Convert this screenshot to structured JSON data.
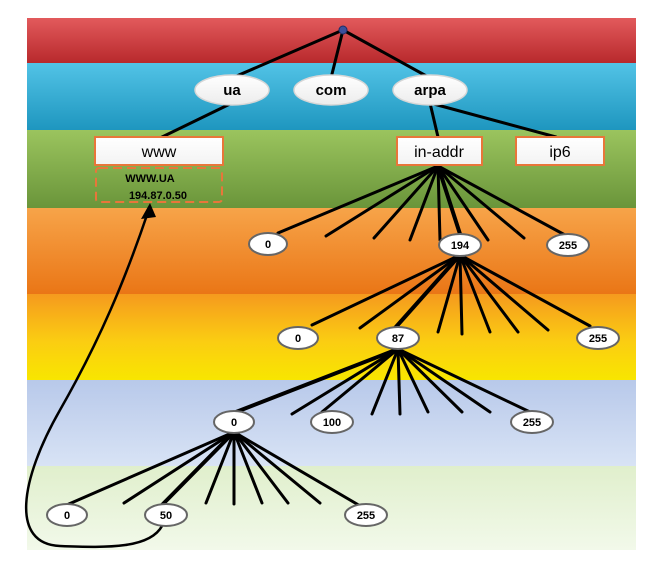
{
  "tlds": [
    "ua",
    "com",
    "arpa"
  ],
  "sld": {
    "www": "www",
    "in_addr": "in-addr",
    "ip6": "ip6"
  },
  "record": {
    "name": "WWW.UA",
    "address": "194.87.0.50"
  },
  "level3": {
    "first": "0",
    "selected": "194",
    "last": "255"
  },
  "level4": {
    "first": "0",
    "selected": "87",
    "last": "255"
  },
  "level5": {
    "selected": "0",
    "middle": "100",
    "last": "255"
  },
  "level6": {
    "first": "0",
    "selected": "50",
    "last": "255"
  },
  "colors": {
    "band_root": "#cc3b3e",
    "band_tld": "#2aa9cf",
    "band_sld": "#7ea847",
    "band_l3": "#f08a2a",
    "band_l4": "#f7b418",
    "band_l5": "#c9d6ef",
    "band_l6": "#e8f3d8",
    "box_border": "#e8763a",
    "line": "#000000"
  }
}
